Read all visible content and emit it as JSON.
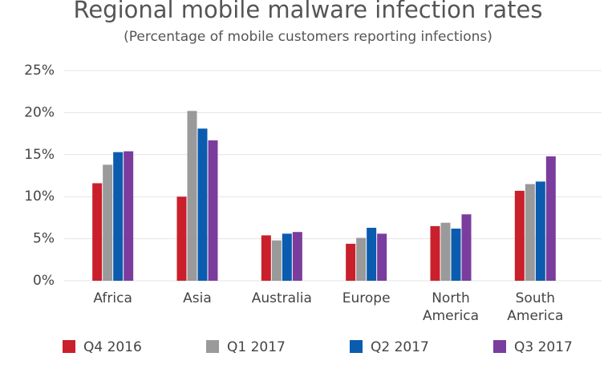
{
  "chart_data": {
    "type": "bar",
    "title": "Regional mobile malware infection rates",
    "subtitle": "(Percentage of mobile customers reporting infections)",
    "categories": [
      "Africa",
      "Asia",
      "Australia",
      "Europe",
      "North America",
      "South America"
    ],
    "series": [
      {
        "name": "Q4 2016",
        "color": "#c9202b",
        "values": [
          11.6,
          10.0,
          5.4,
          4.4,
          6.5,
          10.7
        ]
      },
      {
        "name": "Q1 2017",
        "color": "#9a9a9a",
        "values": [
          13.8,
          20.2,
          4.8,
          5.1,
          6.9,
          11.5
        ]
      },
      {
        "name": "Q2 2017",
        "color": "#0b5cae",
        "values": [
          15.3,
          18.1,
          5.6,
          6.3,
          6.2,
          11.8
        ]
      },
      {
        "name": "Q3 2017",
        "color": "#7a3d9e",
        "values": [
          15.4,
          16.7,
          5.8,
          5.6,
          7.9,
          14.8
        ]
      }
    ],
    "ylim": [
      0,
      25
    ],
    "yticks": [
      {
        "value": 0,
        "label": "0%"
      },
      {
        "value": 5,
        "label": "5%"
      },
      {
        "value": 10,
        "label": "10%"
      },
      {
        "value": 15,
        "label": "15%"
      },
      {
        "value": 20,
        "label": "20%"
      },
      {
        "value": 25,
        "label": "25%"
      }
    ],
    "grid": true
  }
}
